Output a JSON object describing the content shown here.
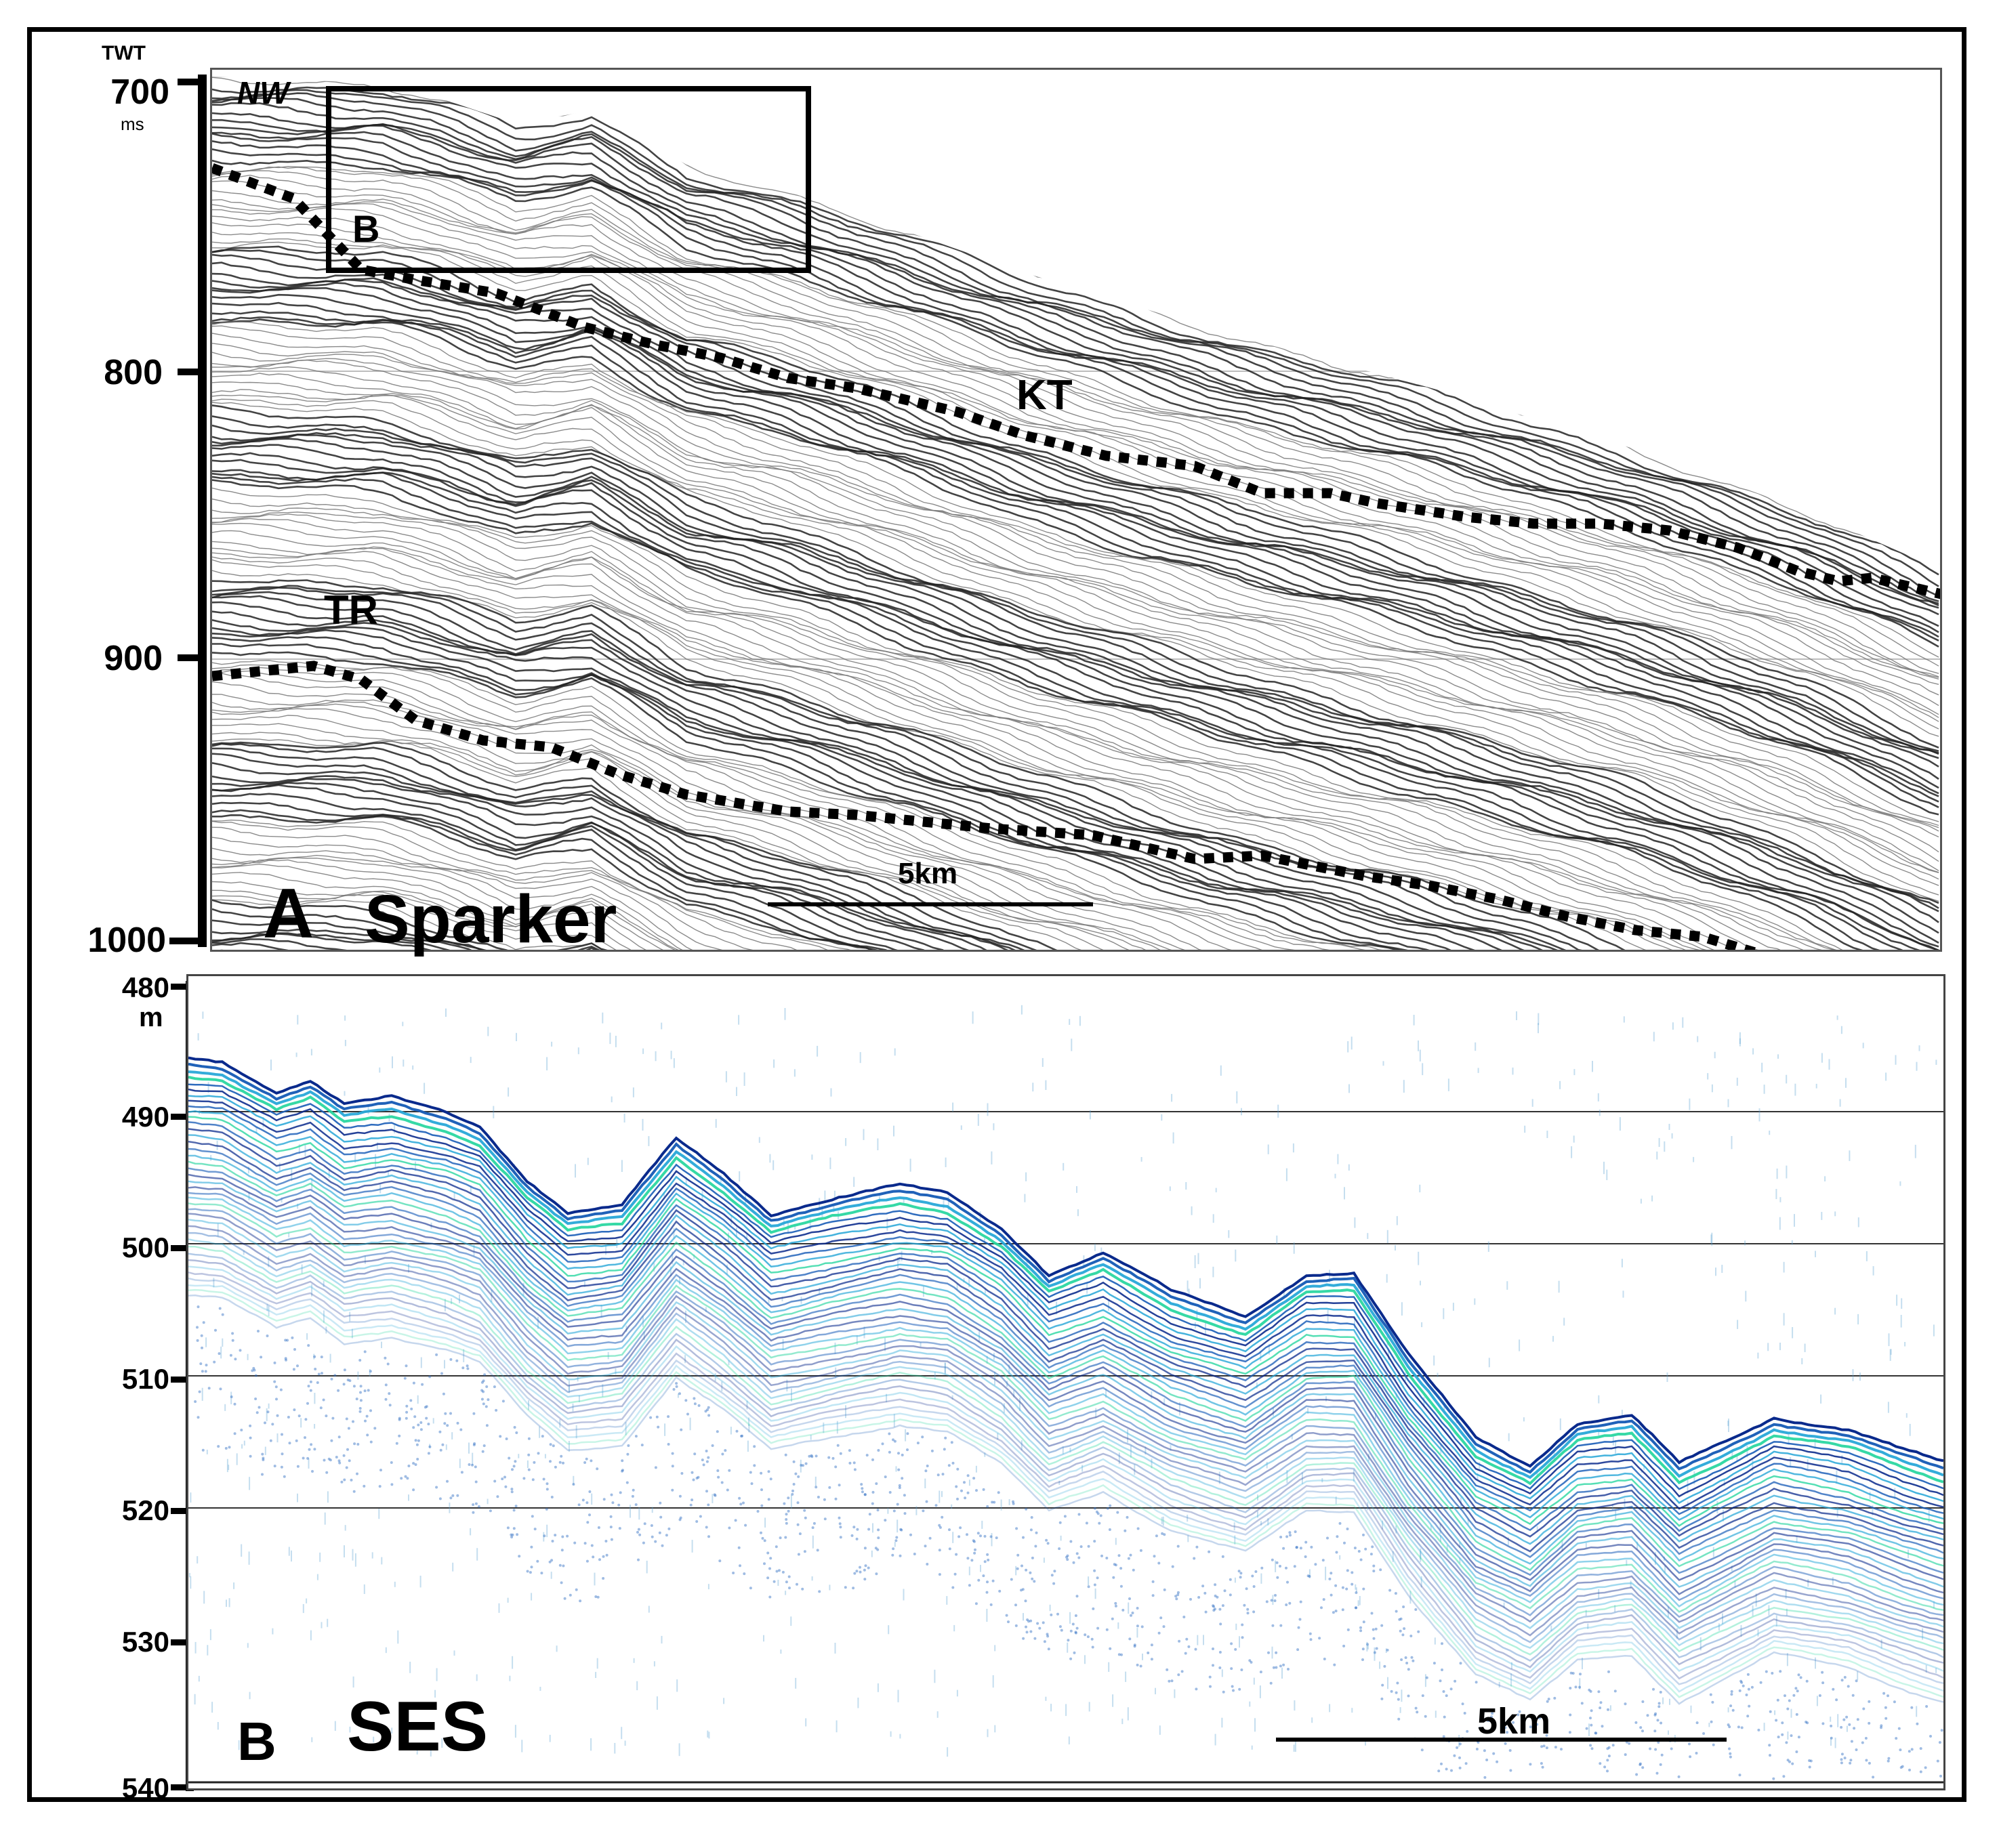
{
  "panel_a": {
    "panel_letter": "A",
    "method_label": "Sparker",
    "axis_header": "TWT",
    "axis_unit": "ms",
    "ticks": [
      "700",
      "800",
      "900",
      "1000"
    ],
    "direction_label": "NW",
    "inset_label": "B",
    "horizon_labels": [
      "KT",
      "TR"
    ],
    "scale_label": "5km"
  },
  "panel_b": {
    "panel_letter": "B",
    "method_label": "SES",
    "axis_unit": "m",
    "ticks": [
      "480",
      "490",
      "500",
      "510",
      "520",
      "530",
      "540"
    ],
    "scale_label": "5km"
  },
  "colors": {
    "frame": "#000000",
    "seismic_gray": "#3a3a3a",
    "horizon_dots": "#000000",
    "ses_dark_blue": "#0a2a8c",
    "ses_blue": "#1c5fb8",
    "ses_cyan": "#2aa8d8",
    "ses_green": "#29d6a0"
  }
}
